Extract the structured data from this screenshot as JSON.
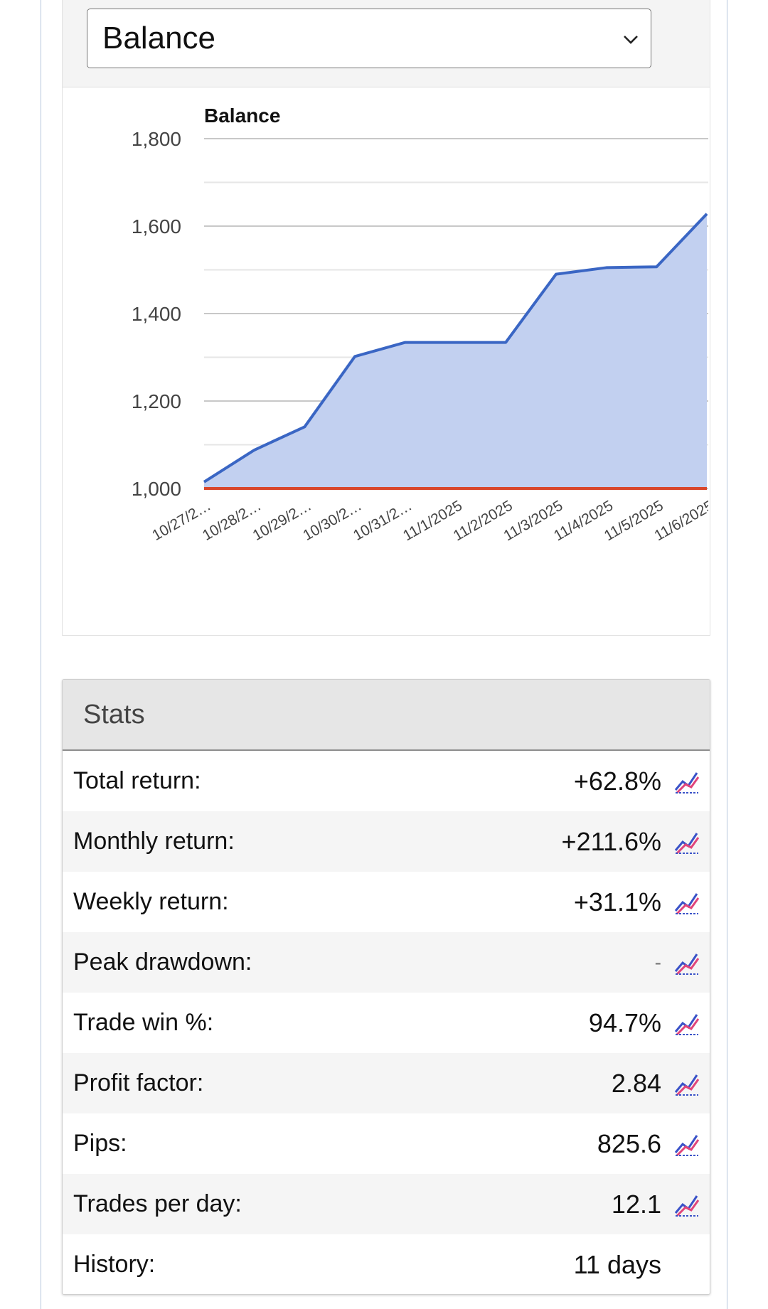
{
  "selector": {
    "value": "Balance"
  },
  "chart_data": {
    "type": "area",
    "title": "Balance",
    "categories": [
      "10/27/2…",
      "10/28/2…",
      "10/29/2…",
      "10/30/2…",
      "10/31/2…",
      "11/1/2025",
      "11/2/2025",
      "11/3/2025",
      "11/4/2025",
      "11/5/2025",
      "11/6/2025"
    ],
    "series": [
      {
        "name": "Balance",
        "values": [
          1015,
          1088,
          1141,
          1302,
          1334,
          1334,
          1334,
          1490,
          1505,
          1507,
          1628
        ]
      },
      {
        "name": "Baseline",
        "values": [
          1000,
          1000,
          1000,
          1000,
          1000,
          1000,
          1000,
          1000,
          1000,
          1000,
          1000
        ]
      }
    ],
    "ylim": [
      1000,
      1800
    ],
    "yticks": [
      "1,000",
      "1,200",
      "1,400",
      "1,600",
      "1,800"
    ],
    "ytick_values": [
      1000,
      1200,
      1400,
      1600,
      1800
    ],
    "colors": {
      "line": "#3a66c4",
      "fill": "#c2d0f0",
      "baseline": "#d9472b",
      "grid": "#c8c8c8",
      "minor_grid": "#e6e6e6"
    }
  },
  "stats": {
    "title": "Stats",
    "rows": [
      {
        "label": "Total return:",
        "value": "+62.8%",
        "icon": "chart-line-icon"
      },
      {
        "label": "Monthly return:",
        "value": "+211.6%",
        "icon": "chart-line-icon"
      },
      {
        "label": "Weekly return:",
        "value": "+31.1%",
        "icon": "chart-line-icon"
      },
      {
        "label": "Peak drawdown:",
        "value": "-",
        "icon": "chart-line-icon"
      },
      {
        "label": "Trade win %:",
        "value": "94.7%",
        "icon": "chart-line-icon"
      },
      {
        "label": "Profit factor:",
        "value": "2.84",
        "icon": "chart-line-icon"
      },
      {
        "label": "Pips:",
        "value": "825.6",
        "icon": "chart-line-icon"
      },
      {
        "label": "Trades per day:",
        "value": "12.1",
        "icon": "chart-line-icon"
      },
      {
        "label": "History:",
        "value": "11 days",
        "icon": ""
      }
    ]
  }
}
